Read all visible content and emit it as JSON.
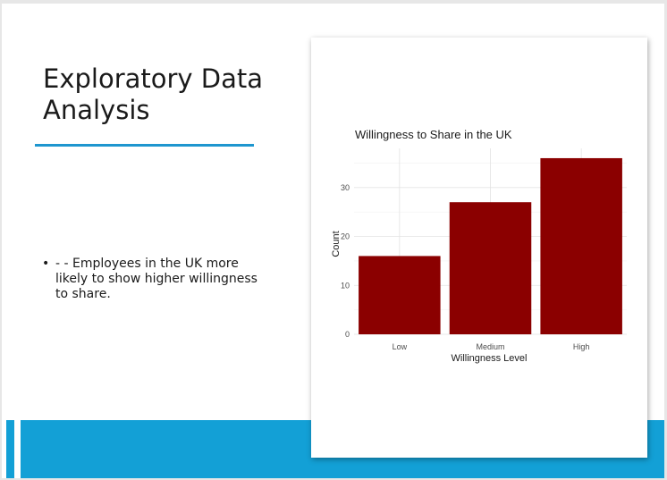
{
  "slide": {
    "title": "Exploratory Data\nAnalysis",
    "bullets": [
      "- - Employees in the UK more likely to show higher willingness to share."
    ],
    "accent_color": "#1e96cf",
    "band_color": "#13a0d6"
  },
  "chart_data": {
    "type": "bar",
    "title": "Willingness to Share in the UK",
    "categories": [
      "Low",
      "Medium",
      "High"
    ],
    "values": [
      16,
      27,
      36
    ],
    "xlabel": "Willingness Level",
    "ylabel": "Count",
    "ylim": [
      0,
      38
    ],
    "yticks": [
      0,
      10,
      20,
      30
    ],
    "bar_color": "#8b0000",
    "grid": true,
    "legend": "none"
  }
}
